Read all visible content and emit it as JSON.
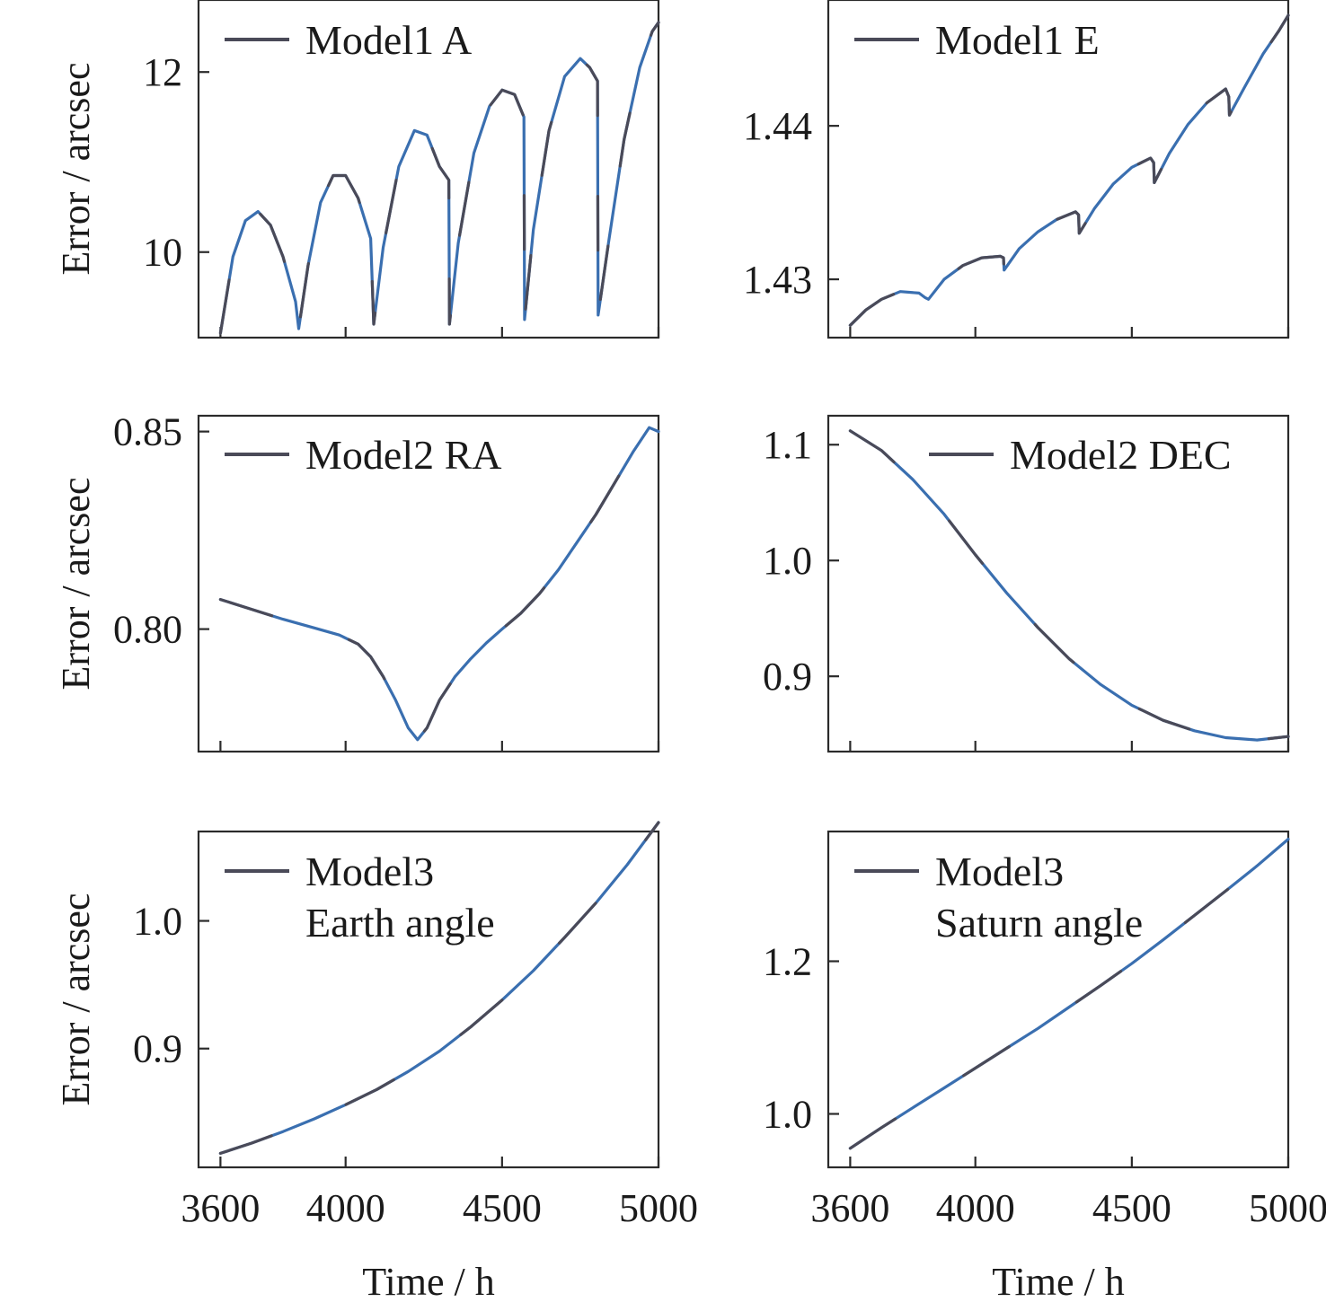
{
  "colors": {
    "series_primary": "#3a6fb0",
    "series_secondary": "#4a4a58",
    "axis": "#2b2b2b",
    "text": "#1a1a1a"
  },
  "chart_data": [
    {
      "type": "line",
      "ylabel": "Error / arcsec",
      "xlim": [
        3530,
        5000
      ],
      "ylim": [
        9.05,
        12.8
      ],
      "xticks": [
        3600,
        4000,
        4500,
        5000
      ],
      "yticks": [
        10,
        12
      ],
      "ytick_labels": [
        "10",
        "12"
      ],
      "legend": "top-left",
      "series": [
        {
          "name": "Model1 A",
          "x": [
            3600,
            3640,
            3680,
            3720,
            3760,
            3800,
            3840,
            3850,
            3880,
            3920,
            3960,
            4000,
            4040,
            4080,
            4090,
            4120,
            4170,
            4220,
            4260,
            4300,
            4330,
            4332,
            4360,
            4410,
            4460,
            4500,
            4540,
            4570,
            4572,
            4600,
            4650,
            4700,
            4750,
            4780,
            4805,
            4807,
            4840,
            4890,
            4940,
            4980,
            5000
          ],
          "y": [
            9.1,
            9.95,
            10.35,
            10.45,
            10.3,
            9.95,
            9.45,
            9.15,
            9.85,
            10.55,
            10.85,
            10.85,
            10.6,
            10.15,
            9.2,
            10.05,
            10.95,
            11.35,
            11.3,
            10.95,
            10.8,
            9.2,
            10.1,
            11.1,
            11.62,
            11.8,
            11.75,
            11.5,
            9.25,
            10.25,
            11.35,
            11.95,
            12.15,
            12.05,
            11.9,
            9.3,
            10.1,
            11.25,
            12.05,
            12.45,
            12.55
          ]
        }
      ]
    },
    {
      "type": "line",
      "xlim": [
        3530,
        5000
      ],
      "ylim": [
        1.4262,
        1.4482
      ],
      "xticks": [
        3600,
        4000,
        4500,
        5000
      ],
      "yticks": [
        1.43,
        1.44
      ],
      "ytick_labels": [
        "1.43",
        "1.44"
      ],
      "legend": "top-left",
      "series": [
        {
          "name": "Model1 E",
          "x": [
            3600,
            3650,
            3700,
            3760,
            3820,
            3840,
            3850,
            3900,
            3960,
            4020,
            4080,
            4090,
            4092,
            4140,
            4200,
            4260,
            4320,
            4330,
            4332,
            4380,
            4440,
            4500,
            4560,
            4570,
            4572,
            4620,
            4680,
            4740,
            4800,
            4810,
            4812,
            4860,
            4920,
            4970,
            5000
          ],
          "y": [
            1.427,
            1.428,
            1.4287,
            1.4292,
            1.4291,
            1.4288,
            1.4287,
            1.43,
            1.4309,
            1.4314,
            1.4315,
            1.4314,
            1.4306,
            1.432,
            1.4331,
            1.4339,
            1.4344,
            1.4342,
            1.433,
            1.4346,
            1.4362,
            1.4373,
            1.4379,
            1.4376,
            1.4363,
            1.4382,
            1.4401,
            1.4415,
            1.4424,
            1.4419,
            1.4407,
            1.4425,
            1.4447,
            1.4462,
            1.4472
          ]
        }
      ]
    },
    {
      "type": "line",
      "ylabel": "Error / arcsec",
      "xlim": [
        3530,
        5000
      ],
      "ylim": [
        0.769,
        0.854
      ],
      "xticks": [
        3600,
        4000,
        4500,
        5000
      ],
      "yticks": [
        0.8,
        0.85
      ],
      "ytick_labels": [
        "0.80",
        "0.85"
      ],
      "legend": "top-left",
      "series": [
        {
          "name": "Model2 RA",
          "x": [
            3600,
            3700,
            3800,
            3900,
            3980,
            4040,
            4080,
            4120,
            4160,
            4200,
            4230,
            4260,
            4300,
            4350,
            4400,
            4450,
            4500,
            4560,
            4620,
            4680,
            4740,
            4800,
            4860,
            4920,
            4970,
            5000
          ],
          "y": [
            0.8075,
            0.805,
            0.8025,
            0.8003,
            0.7985,
            0.7962,
            0.793,
            0.788,
            0.782,
            0.775,
            0.772,
            0.775,
            0.782,
            0.788,
            0.7925,
            0.7965,
            0.8,
            0.804,
            0.809,
            0.815,
            0.822,
            0.829,
            0.837,
            0.845,
            0.851,
            0.85
          ]
        }
      ]
    },
    {
      "type": "line",
      "xlim": [
        3530,
        5000
      ],
      "ylim": [
        0.835,
        1.125
      ],
      "xticks": [
        3600,
        4000,
        4500,
        5000
      ],
      "yticks": [
        0.9,
        1.0,
        1.1
      ],
      "ytick_labels": [
        "0.9",
        "1.0",
        "1.1"
      ],
      "legend": "top-right",
      "series": [
        {
          "name": "Model2 DEC",
          "x": [
            3600,
            3700,
            3800,
            3900,
            4000,
            4100,
            4200,
            4300,
            4400,
            4500,
            4600,
            4700,
            4800,
            4900,
            5000
          ],
          "y": [
            1.112,
            1.095,
            1.07,
            1.04,
            1.005,
            0.972,
            0.942,
            0.915,
            0.893,
            0.875,
            0.862,
            0.853,
            0.847,
            0.845,
            0.848
          ]
        }
      ]
    },
    {
      "type": "line",
      "ylabel": "Error / arcsec",
      "xlabel": "Time / h",
      "xlim": [
        3530,
        5000
      ],
      "ylim": [
        0.807,
        1.07
      ],
      "xticks": [
        3600,
        4000,
        4500,
        5000
      ],
      "xtick_labels": [
        "3600",
        "4000",
        "4500",
        "5000"
      ],
      "yticks": [
        0.9,
        1.0
      ],
      "ytick_labels": [
        "0.9",
        "1.0"
      ],
      "legend": "top-left",
      "series": [
        {
          "name": "Model3\nEarth angle",
          "x": [
            3600,
            3700,
            3800,
            3900,
            4000,
            4100,
            4200,
            4300,
            4400,
            4500,
            4600,
            4700,
            4800,
            4900,
            5000
          ],
          "y": [
            0.818,
            0.826,
            0.835,
            0.845,
            0.856,
            0.868,
            0.882,
            0.898,
            0.917,
            0.938,
            0.961,
            0.987,
            1.014,
            1.044,
            1.077
          ]
        }
      ]
    },
    {
      "type": "line",
      "xlabel": "Time / h",
      "xlim": [
        3530,
        5000
      ],
      "ylim": [
        0.93,
        1.37
      ],
      "xticks": [
        3600,
        4000,
        4500,
        5000
      ],
      "xtick_labels": [
        "3600",
        "4000",
        "4500",
        "5000"
      ],
      "yticks": [
        1.0,
        1.2
      ],
      "ytick_labels": [
        "1.0",
        "1.2"
      ],
      "legend": "top-left",
      "series": [
        {
          "name": "Model3\nSaturn angle",
          "x": [
            3600,
            3700,
            3800,
            3900,
            4000,
            4100,
            4200,
            4300,
            4400,
            4500,
            4600,
            4700,
            4800,
            4900,
            5000
          ],
          "y": [
            0.955,
            0.982,
            1.008,
            1.034,
            1.06,
            1.086,
            1.112,
            1.14,
            1.168,
            1.197,
            1.228,
            1.26,
            1.292,
            1.325,
            1.36
          ]
        }
      ]
    }
  ]
}
